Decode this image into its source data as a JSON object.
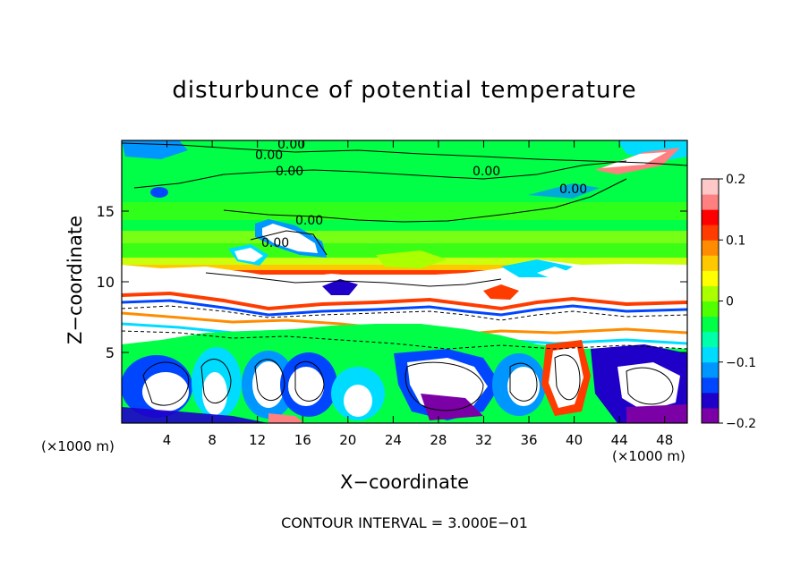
{
  "chart_data": {
    "type": "heatmap",
    "title": "disturbunce of potential temperature",
    "xlabel": "X−coordinate",
    "ylabel": "Z−coordinate",
    "x_unit_left": "(×1000 m)",
    "x_unit_right": "(×1000 m)",
    "xlim": [
      0,
      50
    ],
    "ylim": [
      0,
      20
    ],
    "x_ticks": [
      4,
      8,
      12,
      16,
      20,
      24,
      28,
      32,
      36,
      40,
      44,
      48
    ],
    "y_ticks": [
      5,
      10,
      15
    ],
    "colorbar": {
      "range": [
        -0.2,
        0.2
      ],
      "tick_labels": [
        "0.2",
        "0.1",
        "0",
        "−0.1",
        "−0.2"
      ],
      "tick_values": [
        0.2,
        0.1,
        0,
        -0.1,
        -0.2
      ],
      "colors": [
        "#7b00a5",
        "#1e00c8",
        "#0046ff",
        "#0096ff",
        "#00dcff",
        "#00ffaa",
        "#00ff46",
        "#50ff00",
        "#aaff00",
        "#ffff00",
        "#ffc800",
        "#ff8c00",
        "#ff3c00",
        "#ff0000",
        "#ff8080",
        "#ffc8c8"
      ]
    },
    "contour_labels": [
      "0.00",
      "0.00",
      "0.00",
      "0.00",
      "0.00",
      "0.00",
      "0.00"
    ],
    "contour_interval_text": "CONTOUR INTERVAL = 3.000E−01"
  }
}
